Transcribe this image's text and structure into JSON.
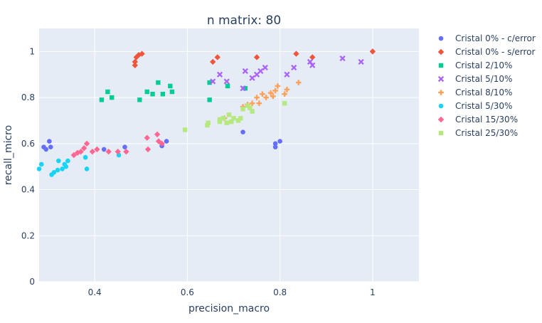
{
  "chart_data": {
    "type": "scatter",
    "title": "n matrix: 80",
    "xlabel": "precision_macro",
    "ylabel": "recall_micro",
    "xlim": [
      0.28,
      1.1
    ],
    "ylim": [
      0,
      1.1
    ],
    "x_ticks": [
      0.4,
      0.6,
      0.8,
      1
    ],
    "x_tick_labels": [
      "0.4",
      "0.6",
      "0.8",
      "1"
    ],
    "y_ticks": [
      0,
      0.2,
      0.4,
      0.6,
      0.8,
      1
    ],
    "y_tick_labels": [
      "0",
      "0.2",
      "0.4",
      "0.6",
      "0.8",
      "1"
    ],
    "grid": true,
    "legend_position": "right",
    "series": [
      {
        "name": "Cristal 0% - c/error",
        "color": "#636efa",
        "symbol": "circle",
        "points": [
          [
            0.29,
            0.585
          ],
          [
            0.295,
            0.575
          ],
          [
            0.302,
            0.61
          ],
          [
            0.305,
            0.585
          ],
          [
            0.42,
            0.575
          ],
          [
            0.465,
            0.585
          ],
          [
            0.545,
            0.59
          ],
          [
            0.555,
            0.61
          ],
          [
            0.72,
            0.65
          ],
          [
            0.79,
            0.585
          ],
          [
            0.79,
            0.6
          ],
          [
            0.8,
            0.61
          ]
        ]
      },
      {
        "name": "Cristal 0% - s/error",
        "color": "#ef553b",
        "symbol": "diamond",
        "points": [
          [
            0.487,
            0.94
          ],
          [
            0.487,
            0.955
          ],
          [
            0.49,
            0.975
          ],
          [
            0.495,
            0.985
          ],
          [
            0.502,
            0.99
          ],
          [
            0.655,
            0.955
          ],
          [
            0.665,
            0.975
          ],
          [
            0.75,
            0.975
          ],
          [
            0.835,
            0.99
          ],
          [
            0.87,
            0.975
          ],
          [
            1.0,
            1.0
          ]
        ]
      },
      {
        "name": "Cristal 2/10%",
        "color": "#00cc96",
        "symbol": "square",
        "points": [
          [
            0.415,
            0.79
          ],
          [
            0.428,
            0.825
          ],
          [
            0.437,
            0.8
          ],
          [
            0.497,
            0.79
          ],
          [
            0.513,
            0.825
          ],
          [
            0.525,
            0.815
          ],
          [
            0.537,
            0.865
          ],
          [
            0.547,
            0.815
          ],
          [
            0.563,
            0.85
          ],
          [
            0.567,
            0.825
          ],
          [
            0.648,
            0.79
          ],
          [
            0.648,
            0.865
          ],
          [
            0.687,
            0.85
          ],
          [
            0.725,
            0.84
          ]
        ]
      },
      {
        "name": "Cristal 5/10%",
        "color": "#ab63fa",
        "symbol": "x",
        "points": [
          [
            0.655,
            0.87
          ],
          [
            0.67,
            0.9
          ],
          [
            0.685,
            0.87
          ],
          [
            0.72,
            0.84
          ],
          [
            0.725,
            0.915
          ],
          [
            0.74,
            0.885
          ],
          [
            0.75,
            0.9
          ],
          [
            0.758,
            0.915
          ],
          [
            0.768,
            0.93
          ],
          [
            0.815,
            0.9
          ],
          [
            0.83,
            0.93
          ],
          [
            0.865,
            0.955
          ],
          [
            0.87,
            0.94
          ],
          [
            0.935,
            0.97
          ],
          [
            0.975,
            0.955
          ]
        ]
      },
      {
        "name": "Cristal 8/10%",
        "color": "#ffa15a",
        "symbol": "cross",
        "points": [
          [
            0.68,
            0.71
          ],
          [
            0.72,
            0.76
          ],
          [
            0.73,
            0.77
          ],
          [
            0.74,
            0.775
          ],
          [
            0.75,
            0.8
          ],
          [
            0.755,
            0.775
          ],
          [
            0.762,
            0.815
          ],
          [
            0.77,
            0.8
          ],
          [
            0.78,
            0.82
          ],
          [
            0.785,
            0.805
          ],
          [
            0.79,
            0.83
          ],
          [
            0.795,
            0.85
          ],
          [
            0.81,
            0.815
          ],
          [
            0.815,
            0.835
          ],
          [
            0.84,
            0.865
          ]
        ]
      },
      {
        "name": "Cristal 5/30%",
        "color": "#19d3f3",
        "symbol": "circle",
        "points": [
          [
            0.28,
            0.49
          ],
          [
            0.285,
            0.51
          ],
          [
            0.307,
            0.465
          ],
          [
            0.312,
            0.475
          ],
          [
            0.32,
            0.485
          ],
          [
            0.322,
            0.525
          ],
          [
            0.33,
            0.49
          ],
          [
            0.335,
            0.51
          ],
          [
            0.338,
            0.5
          ],
          [
            0.342,
            0.525
          ],
          [
            0.38,
            0.54
          ],
          [
            0.383,
            0.49
          ],
          [
            0.452,
            0.55
          ]
        ]
      },
      {
        "name": "Cristal 15/30%",
        "color": "#ff6692",
        "symbol": "diamond",
        "points": [
          [
            0.355,
            0.55
          ],
          [
            0.363,
            0.56
          ],
          [
            0.37,
            0.565
          ],
          [
            0.377,
            0.58
          ],
          [
            0.383,
            0.6
          ],
          [
            0.395,
            0.565
          ],
          [
            0.405,
            0.575
          ],
          [
            0.43,
            0.565
          ],
          [
            0.45,
            0.565
          ],
          [
            0.468,
            0.565
          ],
          [
            0.513,
            0.625
          ],
          [
            0.515,
            0.575
          ],
          [
            0.535,
            0.64
          ],
          [
            0.538,
            0.61
          ],
          [
            0.545,
            0.6
          ]
        ]
      },
      {
        "name": "Cristal 25/30%",
        "color": "#b6e880",
        "symbol": "square",
        "points": [
          [
            0.595,
            0.66
          ],
          [
            0.643,
            0.68
          ],
          [
            0.645,
            0.69
          ],
          [
            0.67,
            0.695
          ],
          [
            0.67,
            0.705
          ],
          [
            0.678,
            0.71
          ],
          [
            0.685,
            0.69
          ],
          [
            0.69,
            0.725
          ],
          [
            0.695,
            0.695
          ],
          [
            0.7,
            0.71
          ],
          [
            0.71,
            0.7
          ],
          [
            0.715,
            0.71
          ],
          [
            0.72,
            0.75
          ],
          [
            0.73,
            0.765
          ],
          [
            0.735,
            0.755
          ],
          [
            0.74,
            0.74
          ],
          [
            0.81,
            0.775
          ]
        ]
      }
    ]
  }
}
